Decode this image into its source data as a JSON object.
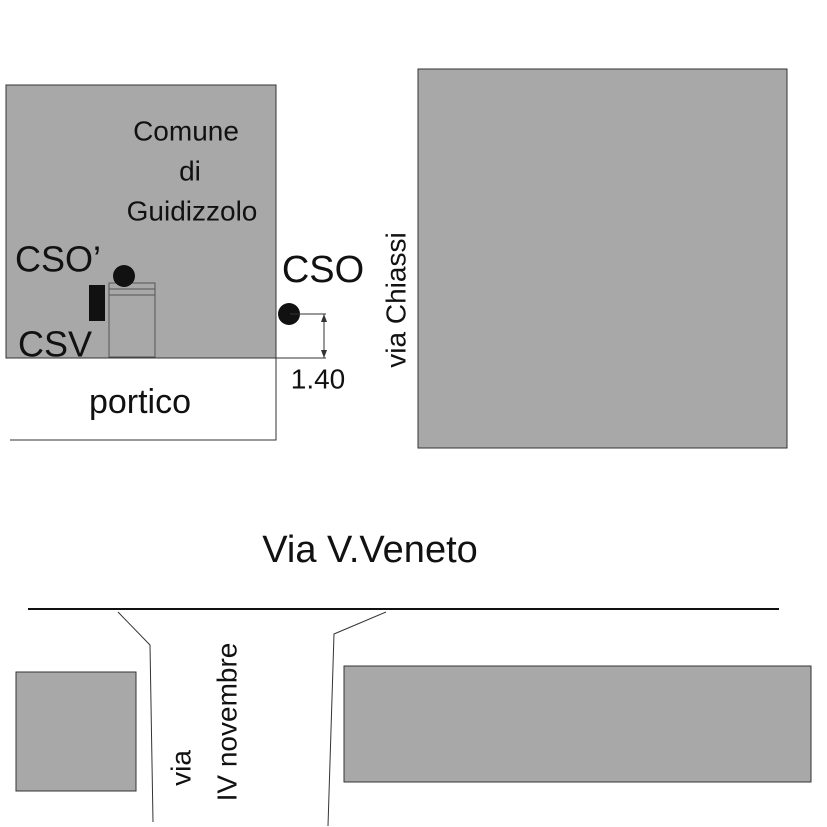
{
  "building_label": [
    "Comune",
    "di",
    "Guidizzolo"
  ],
  "markers": {
    "cso_prime": "CSO’",
    "cso": "CSO",
    "csv": "CSV"
  },
  "portico": "portico",
  "dimension": "1.40",
  "streets": {
    "chiassi": "via Chiassi",
    "veneto": "Via V.Veneto",
    "novembre": [
      "via",
      "IV novembre"
    ]
  }
}
